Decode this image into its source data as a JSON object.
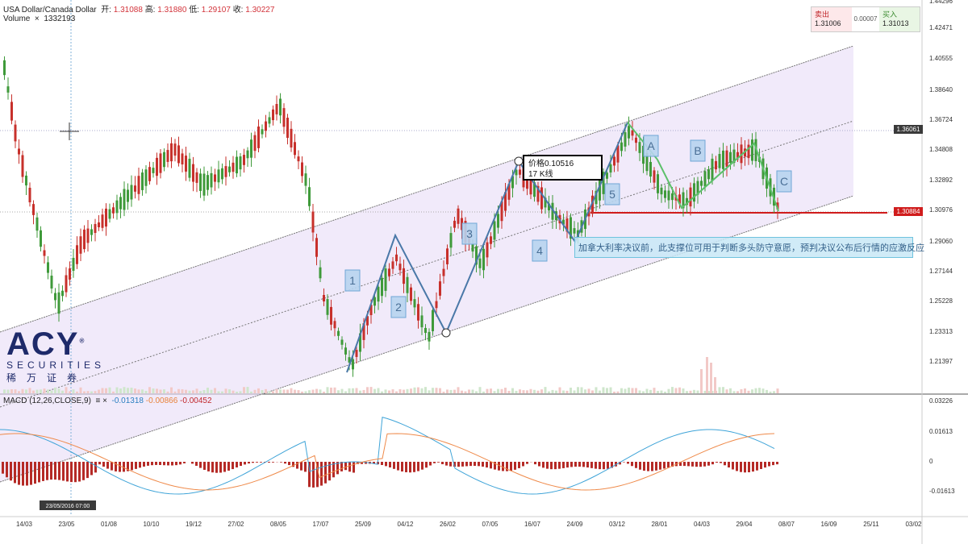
{
  "header": {
    "symbol": "USA Dollar/Canada Dollar",
    "open_label": "开:",
    "open": "1.31088",
    "high_label": "高:",
    "high": "1.31880",
    "low_label": "低:",
    "low": "1.29107",
    "close_label": "收:",
    "close": "1.30227",
    "volume_label": "Volume",
    "volume": "1332193",
    "close_icon": "close-icon"
  },
  "trade_panel": {
    "sell_label": "卖出",
    "sell_price": "1.31006",
    "spread": "0.00007",
    "buy_label": "买入",
    "buy_price": "1.31013"
  },
  "price_axis": {
    "ticks": [
      "1.44296",
      "1.42471",
      "1.40555",
      "1.38640",
      "1.36724",
      "1.34808",
      "1.32892",
      "1.30976",
      "1.29060",
      "1.27144",
      "1.25228",
      "1.23313",
      "1.21397"
    ],
    "current_price_tag": "1.30884",
    "hline_tag": "1.36061",
    "top_tick": "1.4..."
  },
  "macd": {
    "label": "MACD (12,26,CLOSE,9)",
    "v1": "-0.01318",
    "v2": "-0.00866",
    "v3": "-0.00452",
    "ticks": [
      "0.03226",
      "0.01613",
      "0",
      "-0.01613"
    ]
  },
  "time_axis": {
    "ticks": [
      "14/03",
      "23/05",
      "01/08",
      "10/10",
      "19/12",
      "27/02",
      "08/05",
      "17/07",
      "25/09",
      "04/12",
      "26/02",
      "07/05",
      "16/07",
      "24/09",
      "03/12",
      "28/01",
      "04/03",
      "29/04",
      "08/07",
      "16/09",
      "25/11",
      "03/02"
    ],
    "cursor_label": "23/05/2016  07:00"
  },
  "annotations": {
    "wave_labels": [
      "1",
      "2",
      "3",
      "4",
      "5",
      "A",
      "B",
      "C"
    ],
    "measure_line1": "价格0.10516",
    "measure_line2": "17 K线",
    "note": "加拿大利率决议前，此支撑位可用于判断多头防守意愿，预判决议公布后行情的应激反应"
  },
  "logo": {
    "name": "ACY",
    "sub": "SECURITIES",
    "cn": "稀万证券",
    "mark": "®"
  },
  "colors": {
    "up": "#3f9a3a",
    "down": "#c7302b",
    "channel": "#e8dcf7",
    "wave": "#4a78a8",
    "abc": "#5cc06a",
    "support": "#d01c1c"
  }
}
